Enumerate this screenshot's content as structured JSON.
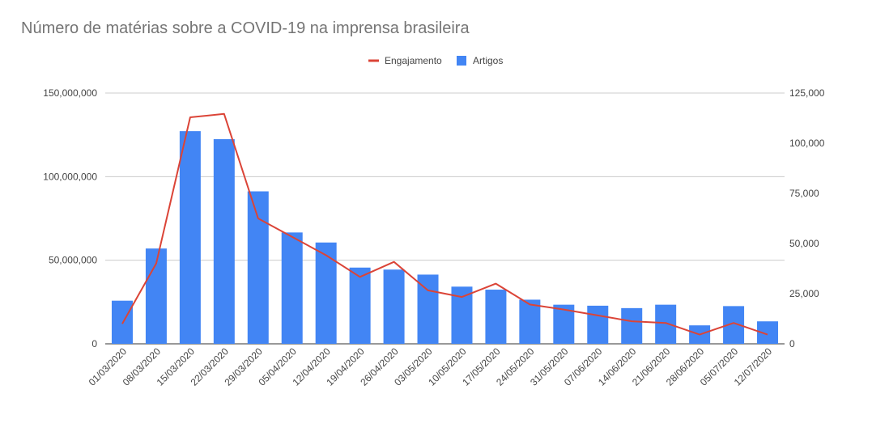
{
  "chart_data": {
    "type": "bar",
    "title": "Número de matérias sobre a COVID-19 na imprensa brasileira",
    "xlabel": "",
    "ylabel": "",
    "categories": [
      "01/03/2020",
      "08/03/2020",
      "15/03/2020",
      "22/03/2020",
      "29/03/2020",
      "05/04/2020",
      "12/04/2020",
      "19/04/2020",
      "26/04/2020",
      "03/05/2020",
      "10/05/2020",
      "17/05/2020",
      "24/05/2020",
      "31/05/2020",
      "07/06/2020",
      "14/06/2020",
      "21/06/2020",
      "28/06/2020",
      "05/07/2020",
      "12/07/2020"
    ],
    "series": [
      {
        "name": "Engajamento",
        "type": "line",
        "axis": "left",
        "color": "#db4437",
        "values": [
          12000000,
          48000000,
          135500000,
          137500000,
          75000000,
          64000000,
          53000000,
          40000000,
          49000000,
          32000000,
          28000000,
          36000000,
          23500000,
          20500000,
          17000000,
          13500000,
          12500000,
          5500000,
          12500000,
          5500000
        ]
      },
      {
        "name": "Artigos",
        "type": "bar",
        "axis": "right",
        "color": "#4285f4",
        "values": [
          21500,
          47500,
          106000,
          102000,
          76000,
          55500,
          50500,
          38000,
          37000,
          34500,
          28500,
          27000,
          22000,
          19500,
          19000,
          17800,
          19500,
          9200,
          18800,
          11200
        ]
      }
    ],
    "left_axis": {
      "ylim": [
        0,
        150000000
      ],
      "ticks": [
        0,
        50000000,
        100000000,
        150000000
      ],
      "tick_labels": [
        "0",
        "50,000,000",
        "100,000,000",
        "150,000,000"
      ]
    },
    "right_axis": {
      "ylim": [
        0,
        125000
      ],
      "ticks": [
        0,
        25000,
        50000,
        75000,
        100000,
        125000
      ],
      "tick_labels": [
        "0",
        "25,000",
        "50,000",
        "75,000",
        "100,000",
        "125,000"
      ]
    },
    "grid": true,
    "legend": "top-center"
  }
}
